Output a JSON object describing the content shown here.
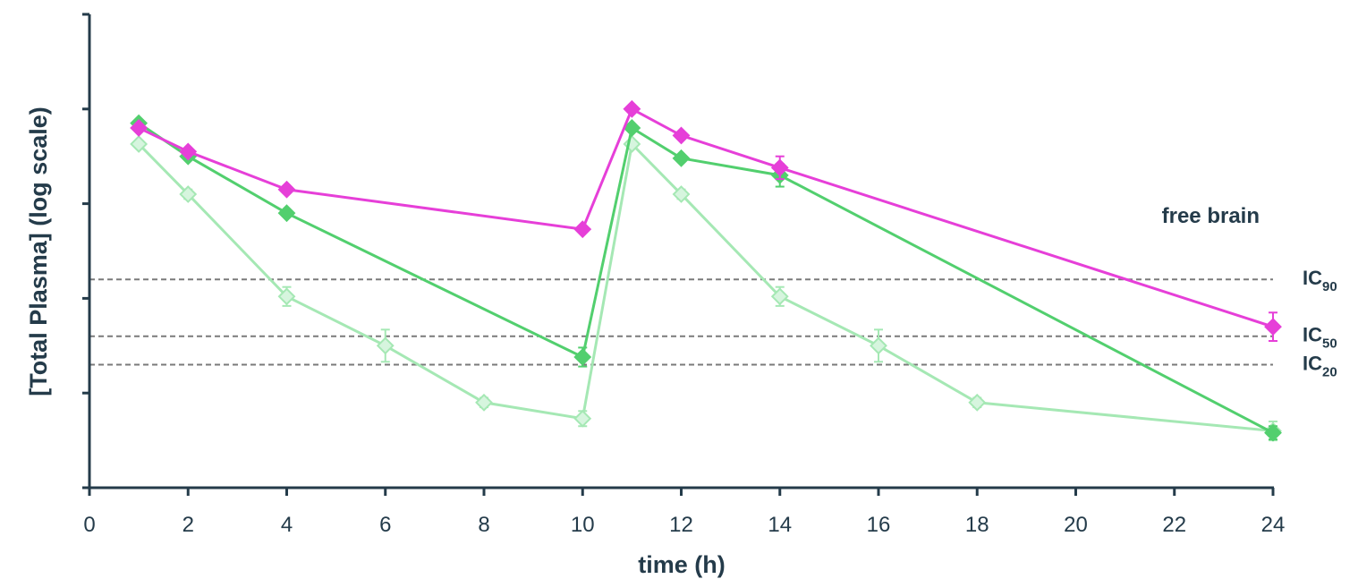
{
  "chart_data": {
    "type": "line",
    "title": "",
    "xlabel": "time (h)",
    "ylabel": "[Total Plasma] (log scale)",
    "xlim": [
      0,
      24
    ],
    "ylim": [
      0,
      5
    ],
    "yscale": "log",
    "x_ticks": [
      0,
      2,
      4,
      6,
      8,
      10,
      12,
      14,
      16,
      18,
      20,
      22,
      24
    ],
    "y_ticks": [
      0,
      1,
      2,
      3,
      4,
      5
    ],
    "grid": false,
    "reference_lines": [
      {
        "label_main": "IC",
        "label_sub": "90",
        "y": 2.2
      },
      {
        "label_main": "IC",
        "label_sub": "50",
        "y": 1.6
      },
      {
        "label_main": "IC",
        "label_sub": "20",
        "y": 1.3
      }
    ],
    "annotations": [
      {
        "text": "free brain"
      }
    ],
    "series": [
      {
        "name": "",
        "color": "#e63fd8",
        "marker": "diamond-filled",
        "x": [
          1,
          2,
          4,
          10,
          11,
          12,
          14,
          24
        ],
        "y": [
          3.8,
          3.55,
          3.15,
          2.73,
          4.0,
          3.72,
          3.38,
          1.7
        ],
        "err": [
          0,
          0,
          0,
          0,
          0,
          0,
          0.12,
          0.15
        ]
      },
      {
        "name": "",
        "color": "#52cf6e",
        "marker": "diamond-filled",
        "x": [
          1,
          2,
          4,
          10,
          11,
          12,
          14,
          24
        ],
        "y": [
          3.85,
          3.5,
          2.9,
          1.38,
          3.8,
          3.48,
          3.3,
          0.58
        ],
        "err": [
          0,
          0,
          0,
          0.1,
          0,
          0,
          0.12,
          0.07
        ]
      },
      {
        "name": "",
        "color": "#a5e8b4",
        "marker": "diamond-open",
        "x": [
          1,
          2,
          4,
          6,
          8,
          10,
          11,
          12,
          14,
          16,
          18,
          24
        ],
        "y": [
          3.63,
          3.1,
          2.02,
          1.5,
          0.9,
          0.73,
          3.63,
          3.1,
          2.02,
          1.5,
          0.9,
          0.6
        ],
        "err": [
          0,
          0.05,
          0.1,
          0.17,
          0.05,
          0.08,
          0,
          0.05,
          0.1,
          0.17,
          0.05,
          0.1
        ]
      }
    ]
  }
}
